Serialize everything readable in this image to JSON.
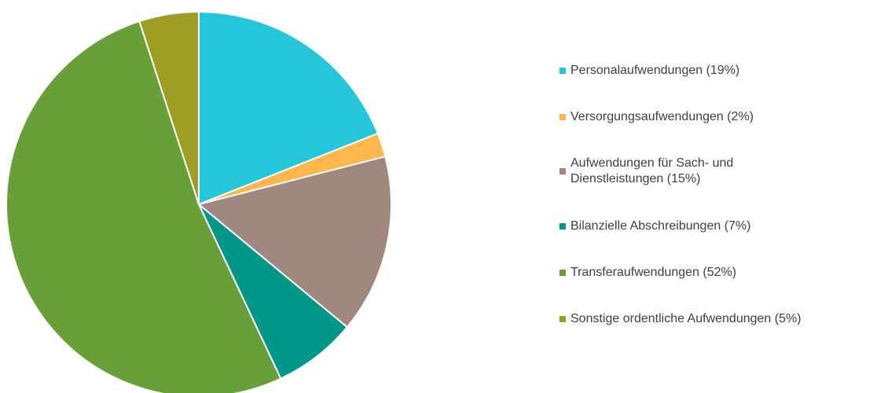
{
  "chart_data": {
    "type": "pie",
    "categories": [
      "Personalaufwendungen (19%)",
      "Versorgungsaufwendungen (2%)",
      "Aufwendungen für Sach- und\nDienstleistungen (15%)",
      "Bilanzielle Abschreibungen (7%)",
      "Transferaufwendungen (52%)",
      "Sonstige ordentliche Aufwendungen (5%)"
    ],
    "values": [
      19,
      2,
      15,
      7,
      52,
      5
    ],
    "colors": [
      "#26c6da",
      "#ffb74d",
      "#a1887f",
      "#009688",
      "#689f38",
      "#9e9d24"
    ],
    "legend": "right"
  }
}
